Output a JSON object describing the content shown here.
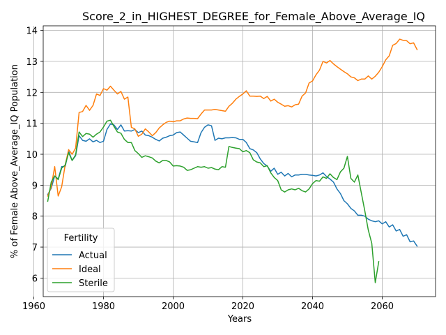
{
  "chart_data": {
    "type": "line",
    "title": "Score_2_in_HIGHEST_DEGREE_for_Female_Above_Average_IQ",
    "xlabel": "Years",
    "ylabel": "% of Female Above_Average_IQ Population",
    "xlim": [
      1962.7,
      2075.3
    ],
    "ylim": [
      5.4,
      14.15
    ],
    "xticks": [
      1960,
      1980,
      2000,
      2020,
      2040,
      2060
    ],
    "yticks": [
      6,
      7,
      8,
      9,
      10,
      11,
      12,
      13,
      14
    ],
    "grid": true,
    "legend": {
      "title": "Fertility",
      "placement": "lower-left"
    },
    "series": [
      {
        "name": "Actual",
        "color": "#1f77b4",
        "points": [
          [
            1964,
            8.7
          ],
          [
            1965,
            8.9
          ],
          [
            1966,
            9.3
          ],
          [
            1967,
            9.2
          ],
          [
            1968,
            9.6
          ],
          [
            1969,
            9.6
          ],
          [
            1970,
            10.1
          ],
          [
            1971,
            9.8
          ],
          [
            1972,
            9.95
          ],
          [
            1973,
            10.6
          ],
          [
            1974,
            10.45
          ],
          [
            1975,
            10.42
          ],
          [
            1976,
            10.5
          ],
          [
            1977,
            10.4
          ],
          [
            1978,
            10.45
          ],
          [
            1979,
            10.38
          ],
          [
            1980,
            10.42
          ],
          [
            1981,
            10.8
          ],
          [
            1982,
            10.98
          ],
          [
            1983,
            10.95
          ],
          [
            1984,
            10.8
          ],
          [
            1985,
            10.95
          ],
          [
            1986,
            10.75
          ],
          [
            1987,
            10.76
          ],
          [
            1988,
            10.75
          ],
          [
            1989,
            10.8
          ],
          [
            1990,
            10.7
          ],
          [
            1991,
            10.75
          ],
          [
            1992,
            10.62
          ],
          [
            1993,
            10.6
          ],
          [
            1994,
            10.55
          ],
          [
            1995,
            10.48
          ],
          [
            1996,
            10.43
          ],
          [
            1997,
            10.52
          ],
          [
            1998,
            10.55
          ],
          [
            1999,
            10.6
          ],
          [
            2000,
            10.62
          ],
          [
            2001,
            10.7
          ],
          [
            2002,
            10.72
          ],
          [
            2003,
            10.62
          ],
          [
            2004,
            10.52
          ],
          [
            2005,
            10.42
          ],
          [
            2006,
            10.4
          ],
          [
            2007,
            10.38
          ],
          [
            2008,
            10.7
          ],
          [
            2009,
            10.87
          ],
          [
            2010,
            10.95
          ],
          [
            2011,
            10.92
          ],
          [
            2012,
            10.45
          ],
          [
            2013,
            10.52
          ],
          [
            2014,
            10.5
          ],
          [
            2015,
            10.53
          ],
          [
            2016,
            10.53
          ],
          [
            2017,
            10.54
          ],
          [
            2018,
            10.53
          ],
          [
            2019,
            10.48
          ],
          [
            2020,
            10.48
          ],
          [
            2021,
            10.38
          ],
          [
            2022,
            10.18
          ],
          [
            2023,
            10.14
          ],
          [
            2024,
            10.05
          ],
          [
            2025,
            9.85
          ],
          [
            2026,
            9.7
          ],
          [
            2027,
            9.62
          ],
          [
            2028,
            9.45
          ],
          [
            2029,
            9.55
          ],
          [
            2030,
            9.35
          ],
          [
            2031,
            9.42
          ],
          [
            2032,
            9.3
          ],
          [
            2033,
            9.38
          ],
          [
            2034,
            9.27
          ],
          [
            2035,
            9.33
          ],
          [
            2036,
            9.33
          ],
          [
            2037,
            9.35
          ],
          [
            2038,
            9.35
          ],
          [
            2039,
            9.33
          ],
          [
            2040,
            9.32
          ],
          [
            2041,
            9.3
          ],
          [
            2042,
            9.33
          ],
          [
            2043,
            9.4
          ],
          [
            2044,
            9.28
          ],
          [
            2045,
            9.2
          ],
          [
            2046,
            9.1
          ],
          [
            2047,
            8.88
          ],
          [
            2048,
            8.73
          ],
          [
            2049,
            8.5
          ],
          [
            2050,
            8.4
          ],
          [
            2051,
            8.25
          ],
          [
            2052,
            8.17
          ],
          [
            2053,
            8.03
          ],
          [
            2054,
            8.03
          ],
          [
            2055,
            8.0
          ],
          [
            2056,
            7.9
          ],
          [
            2057,
            7.85
          ],
          [
            2058,
            7.82
          ],
          [
            2059,
            7.85
          ],
          [
            2060,
            7.75
          ],
          [
            2061,
            7.82
          ],
          [
            2062,
            7.65
          ],
          [
            2063,
            7.72
          ],
          [
            2064,
            7.52
          ],
          [
            2065,
            7.57
          ],
          [
            2066,
            7.35
          ],
          [
            2067,
            7.4
          ],
          [
            2068,
            7.17
          ],
          [
            2069,
            7.2
          ],
          [
            2070,
            7.03
          ]
        ]
      },
      {
        "name": "Ideal",
        "color": "#ff7f0e",
        "points": [
          [
            1964,
            8.65
          ],
          [
            1965,
            8.95
          ],
          [
            1966,
            9.6
          ],
          [
            1967,
            8.65
          ],
          [
            1968,
            8.95
          ],
          [
            1969,
            9.65
          ],
          [
            1970,
            10.15
          ],
          [
            1971,
            10.0
          ],
          [
            1972,
            10.2
          ],
          [
            1973,
            11.35
          ],
          [
            1974,
            11.38
          ],
          [
            1975,
            11.58
          ],
          [
            1976,
            11.42
          ],
          [
            1977,
            11.58
          ],
          [
            1978,
            11.95
          ],
          [
            1979,
            11.9
          ],
          [
            1980,
            12.12
          ],
          [
            1981,
            12.07
          ],
          [
            1982,
            12.2
          ],
          [
            1983,
            12.07
          ],
          [
            1984,
            11.95
          ],
          [
            1985,
            12.03
          ],
          [
            1986,
            11.78
          ],
          [
            1987,
            11.85
          ],
          [
            1988,
            10.87
          ],
          [
            1989,
            10.82
          ],
          [
            1990,
            10.58
          ],
          [
            1991,
            10.65
          ],
          [
            1992,
            10.82
          ],
          [
            1993,
            10.72
          ],
          [
            1994,
            10.6
          ],
          [
            1995,
            10.7
          ],
          [
            1996,
            10.85
          ],
          [
            1997,
            10.95
          ],
          [
            1998,
            11.03
          ],
          [
            1999,
            11.07
          ],
          [
            2000,
            11.05
          ],
          [
            2001,
            11.08
          ],
          [
            2002,
            11.08
          ],
          [
            2003,
            11.14
          ],
          [
            2004,
            11.17
          ],
          [
            2005,
            11.16
          ],
          [
            2006,
            11.16
          ],
          [
            2007,
            11.15
          ],
          [
            2008,
            11.3
          ],
          [
            2009,
            11.43
          ],
          [
            2010,
            11.43
          ],
          [
            2011,
            11.43
          ],
          [
            2012,
            11.45
          ],
          [
            2013,
            11.43
          ],
          [
            2014,
            11.41
          ],
          [
            2015,
            11.39
          ],
          [
            2016,
            11.55
          ],
          [
            2017,
            11.65
          ],
          [
            2018,
            11.78
          ],
          [
            2019,
            11.87
          ],
          [
            2020,
            11.95
          ],
          [
            2021,
            12.05
          ],
          [
            2022,
            11.88
          ],
          [
            2023,
            11.88
          ],
          [
            2024,
            11.87
          ],
          [
            2025,
            11.88
          ],
          [
            2026,
            11.8
          ],
          [
            2027,
            11.87
          ],
          [
            2028,
            11.72
          ],
          [
            2029,
            11.78
          ],
          [
            2030,
            11.68
          ],
          [
            2031,
            11.62
          ],
          [
            2032,
            11.55
          ],
          [
            2033,
            11.57
          ],
          [
            2034,
            11.53
          ],
          [
            2035,
            11.6
          ],
          [
            2036,
            11.62
          ],
          [
            2037,
            11.88
          ],
          [
            2038,
            11.98
          ],
          [
            2039,
            12.3
          ],
          [
            2040,
            12.37
          ],
          [
            2041,
            12.57
          ],
          [
            2042,
            12.72
          ],
          [
            2043,
            13.0
          ],
          [
            2044,
            12.95
          ],
          [
            2045,
            13.03
          ],
          [
            2046,
            12.92
          ],
          [
            2047,
            12.83
          ],
          [
            2048,
            12.75
          ],
          [
            2049,
            12.67
          ],
          [
            2050,
            12.6
          ],
          [
            2051,
            12.5
          ],
          [
            2052,
            12.47
          ],
          [
            2053,
            12.38
          ],
          [
            2054,
            12.43
          ],
          [
            2055,
            12.43
          ],
          [
            2056,
            12.53
          ],
          [
            2057,
            12.43
          ],
          [
            2058,
            12.52
          ],
          [
            2059,
            12.65
          ],
          [
            2060,
            12.83
          ],
          [
            2061,
            13.05
          ],
          [
            2062,
            13.18
          ],
          [
            2063,
            13.52
          ],
          [
            2064,
            13.58
          ],
          [
            2065,
            13.72
          ],
          [
            2066,
            13.68
          ],
          [
            2067,
            13.67
          ],
          [
            2068,
            13.57
          ],
          [
            2069,
            13.6
          ],
          [
            2070,
            13.38
          ]
        ]
      },
      {
        "name": "Sterile",
        "color": "#2ca02c",
        "points": [
          [
            1964,
            8.48
          ],
          [
            1965,
            9.1
          ],
          [
            1966,
            9.3
          ],
          [
            1967,
            9.18
          ],
          [
            1968,
            9.55
          ],
          [
            1969,
            9.65
          ],
          [
            1970,
            10.05
          ],
          [
            1971,
            9.8
          ],
          [
            1972,
            9.98
          ],
          [
            1973,
            10.72
          ],
          [
            1974,
            10.57
          ],
          [
            1975,
            10.67
          ],
          [
            1976,
            10.65
          ],
          [
            1977,
            10.55
          ],
          [
            1978,
            10.65
          ],
          [
            1979,
            10.72
          ],
          [
            1980,
            10.88
          ],
          [
            1981,
            11.07
          ],
          [
            1982,
            11.1
          ],
          [
            1983,
            10.9
          ],
          [
            1984,
            10.72
          ],
          [
            1985,
            10.68
          ],
          [
            1986,
            10.48
          ],
          [
            1987,
            10.38
          ],
          [
            1988,
            10.38
          ],
          [
            1989,
            10.12
          ],
          [
            1990,
            10.02
          ],
          [
            1991,
            9.9
          ],
          [
            1992,
            9.95
          ],
          [
            1993,
            9.92
          ],
          [
            1994,
            9.88
          ],
          [
            1995,
            9.78
          ],
          [
            1996,
            9.72
          ],
          [
            1997,
            9.8
          ],
          [
            1998,
            9.8
          ],
          [
            1999,
            9.75
          ],
          [
            2000,
            9.62
          ],
          [
            2001,
            9.63
          ],
          [
            2002,
            9.62
          ],
          [
            2003,
            9.58
          ],
          [
            2004,
            9.48
          ],
          [
            2005,
            9.5
          ],
          [
            2006,
            9.55
          ],
          [
            2007,
            9.6
          ],
          [
            2008,
            9.58
          ],
          [
            2009,
            9.6
          ],
          [
            2010,
            9.55
          ],
          [
            2011,
            9.57
          ],
          [
            2012,
            9.52
          ],
          [
            2013,
            9.5
          ],
          [
            2014,
            9.6
          ],
          [
            2015,
            9.58
          ],
          [
            2016,
            10.25
          ],
          [
            2017,
            10.22
          ],
          [
            2018,
            10.2
          ],
          [
            2019,
            10.18
          ],
          [
            2020,
            10.08
          ],
          [
            2021,
            10.12
          ],
          [
            2022,
            10.05
          ],
          [
            2023,
            9.82
          ],
          [
            2024,
            9.75
          ],
          [
            2025,
            9.72
          ],
          [
            2026,
            9.6
          ],
          [
            2027,
            9.63
          ],
          [
            2028,
            9.4
          ],
          [
            2029,
            9.25
          ],
          [
            2030,
            9.15
          ],
          [
            2031,
            8.85
          ],
          [
            2032,
            8.78
          ],
          [
            2033,
            8.85
          ],
          [
            2034,
            8.88
          ],
          [
            2035,
            8.85
          ],
          [
            2036,
            8.9
          ],
          [
            2037,
            8.82
          ],
          [
            2038,
            8.78
          ],
          [
            2039,
            8.88
          ],
          [
            2040,
            9.05
          ],
          [
            2041,
            9.15
          ],
          [
            2042,
            9.13
          ],
          [
            2043,
            9.27
          ],
          [
            2044,
            9.22
          ],
          [
            2045,
            9.37
          ],
          [
            2046,
            9.25
          ],
          [
            2047,
            9.18
          ],
          [
            2048,
            9.43
          ],
          [
            2049,
            9.55
          ],
          [
            2050,
            9.93
          ],
          [
            2051,
            9.22
          ],
          [
            2052,
            9.1
          ],
          [
            2053,
            9.33
          ],
          [
            2054,
            8.75
          ],
          [
            2055,
            8.17
          ],
          [
            2056,
            7.55
          ],
          [
            2057,
            7.12
          ],
          [
            2058,
            5.85
          ],
          [
            2059,
            6.53
          ]
        ]
      }
    ]
  }
}
